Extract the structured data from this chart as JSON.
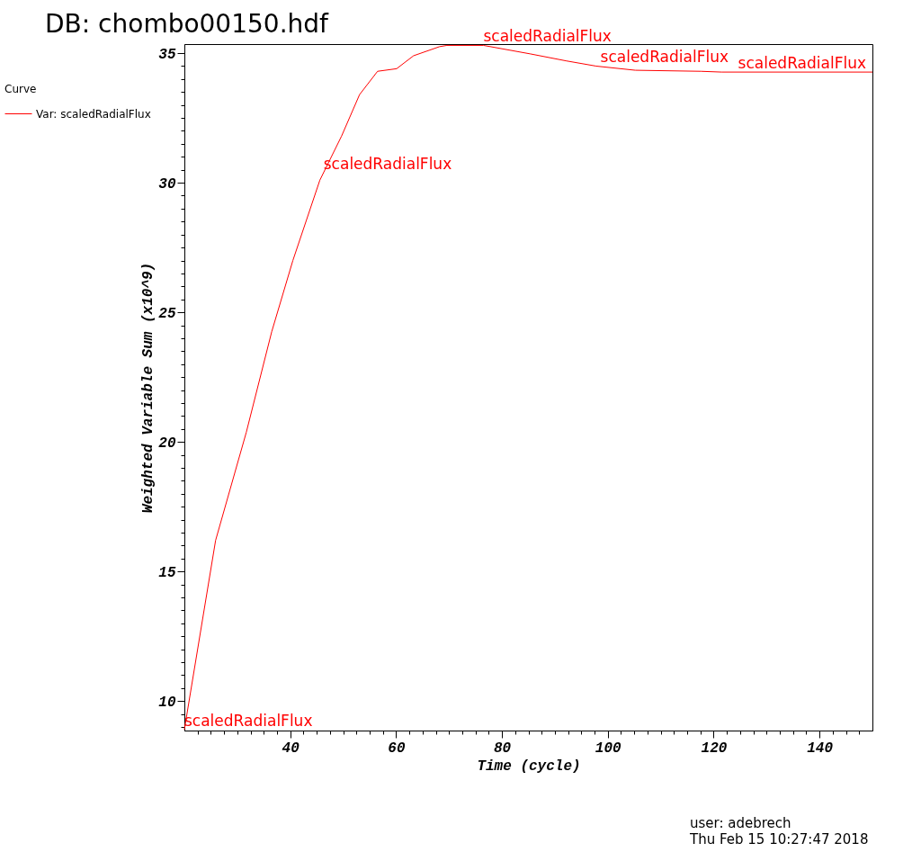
{
  "chart_data": {
    "type": "line",
    "title": "DB: chombo00150.hdf",
    "xlabel": "Time (cycle)",
    "ylabel": "Weighted Variable Sum (x10^9)",
    "legend_title": "Curve",
    "legend": "top left",
    "grid": false,
    "marker": "none",
    "line_style": "solid",
    "xlim": [
      20,
      150
    ],
    "ylim": [
      8.86,
      35.35
    ],
    "xticks": [
      {
        "value": 22.5,
        "label": null
      },
      {
        "value": 25,
        "label": null
      },
      {
        "value": 27.5,
        "label": null
      },
      {
        "value": 30,
        "label": null
      },
      {
        "value": 32.5,
        "label": null
      },
      {
        "value": 35,
        "label": null
      },
      {
        "value": 37.5,
        "label": null
      },
      40,
      {
        "value": 42.5,
        "label": null
      },
      {
        "value": 45,
        "label": null
      },
      {
        "value": 47.5,
        "label": null
      },
      {
        "value": 50,
        "label": null
      },
      {
        "value": 52.5,
        "label": null
      },
      {
        "value": 55,
        "label": null
      },
      {
        "value": 57.5,
        "label": null
      },
      60,
      {
        "value": 62.5,
        "label": null
      },
      {
        "value": 65,
        "label": null
      },
      {
        "value": 67.5,
        "label": null
      },
      {
        "value": 70,
        "label": null
      },
      {
        "value": 72.5,
        "label": null
      },
      {
        "value": 75,
        "label": null
      },
      {
        "value": 77.5,
        "label": null
      },
      80,
      {
        "value": 82.5,
        "label": null
      },
      {
        "value": 85,
        "label": null
      },
      {
        "value": 87.5,
        "label": null
      },
      {
        "value": 90,
        "label": null
      },
      {
        "value": 92.5,
        "label": null
      },
      {
        "value": 95,
        "label": null
      },
      {
        "value": 97.5,
        "label": null
      },
      100,
      {
        "value": 102.5,
        "label": null
      },
      {
        "value": 105,
        "label": null
      },
      {
        "value": 107.5,
        "label": null
      },
      {
        "value": 110,
        "label": null
      },
      {
        "value": 112.5,
        "label": null
      },
      {
        "value": 115,
        "label": null
      },
      {
        "value": 117.5,
        "label": null
      },
      120,
      {
        "value": 122.5,
        "label": null
      },
      {
        "value": 125,
        "label": null
      },
      {
        "value": 127.5,
        "label": null
      },
      {
        "value": 130,
        "label": null
      },
      {
        "value": 132.5,
        "label": null
      },
      {
        "value": 135,
        "label": null
      },
      {
        "value": 137.5,
        "label": null
      },
      140,
      {
        "value": 142.5,
        "label": null
      },
      {
        "value": 145,
        "label": null
      },
      {
        "value": 147.5,
        "label": null
      }
    ],
    "yticks": [
      {
        "value": 9,
        "label": null
      },
      {
        "value": 9.5,
        "label": null
      },
      10,
      {
        "value": 10.5,
        "label": null
      },
      {
        "value": 11,
        "label": null
      },
      {
        "value": 11.5,
        "label": null
      },
      {
        "value": 12,
        "label": null
      },
      {
        "value": 12.5,
        "label": null
      },
      {
        "value": 13,
        "label": null
      },
      {
        "value": 13.5,
        "label": null
      },
      {
        "value": 14,
        "label": null
      },
      {
        "value": 14.5,
        "label": null
      },
      15,
      {
        "value": 15.5,
        "label": null
      },
      {
        "value": 16,
        "label": null
      },
      {
        "value": 16.5,
        "label": null
      },
      {
        "value": 17,
        "label": null
      },
      {
        "value": 17.5,
        "label": null
      },
      {
        "value": 18,
        "label": null
      },
      {
        "value": 18.5,
        "label": null
      },
      {
        "value": 19,
        "label": null
      },
      {
        "value": 19.5,
        "label": null
      },
      20,
      {
        "value": 20.5,
        "label": null
      },
      {
        "value": 21,
        "label": null
      },
      {
        "value": 21.5,
        "label": null
      },
      {
        "value": 22,
        "label": null
      },
      {
        "value": 22.5,
        "label": null
      },
      {
        "value": 23,
        "label": null
      },
      {
        "value": 23.5,
        "label": null
      },
      {
        "value": 24,
        "label": null
      },
      {
        "value": 24.5,
        "label": null
      },
      25,
      {
        "value": 25.5,
        "label": null
      },
      {
        "value": 26,
        "label": null
      },
      {
        "value": 26.5,
        "label": null
      },
      {
        "value": 27,
        "label": null
      },
      {
        "value": 27.5,
        "label": null
      },
      {
        "value": 28,
        "label": null
      },
      {
        "value": 28.5,
        "label": null
      },
      {
        "value": 29,
        "label": null
      },
      {
        "value": 29.5,
        "label": null
      },
      30,
      {
        "value": 30.5,
        "label": null
      },
      {
        "value": 31,
        "label": null
      },
      {
        "value": 31.5,
        "label": null
      },
      {
        "value": 32,
        "label": null
      },
      {
        "value": 32.5,
        "label": null
      },
      {
        "value": 33,
        "label": null
      },
      {
        "value": 33.5,
        "label": null
      },
      {
        "value": 34,
        "label": null
      },
      {
        "value": 34.5,
        "label": null
      },
      35
    ],
    "series": [
      {
        "name": "Var: scaledRadialFlux",
        "color": "#ff0000",
        "x": [
          20,
          25.9,
          31.7,
          36.5,
          40.5,
          45.6,
          49.7,
          53.1,
          56.5,
          60.1,
          63.3,
          68.2,
          69.6,
          76.5,
          85.4,
          92.2,
          97.8,
          105.2,
          117.6,
          121.5,
          150
        ],
        "values": [
          8.9,
          16.2,
          20.37,
          24.25,
          27.0,
          30.1,
          31.8,
          33.4,
          34.3,
          34.4,
          34.9,
          35.25,
          35.3,
          35.3,
          34.97,
          34.7,
          34.5,
          34.34,
          34.3,
          34.27,
          34.27
        ]
      }
    ],
    "annotations": [
      {
        "text": "scaledRadialFlux",
        "x": 20,
        "y": 8.9
      },
      {
        "text": "scaledRadialFlux",
        "x": 46.3,
        "y": 30.4
      },
      {
        "text": "scaledRadialFlux",
        "x": 76.5,
        "y": 35.3
      },
      {
        "text": "scaledRadialFlux",
        "x": 98.6,
        "y": 34.5
      },
      {
        "text": "scaledRadialFlux",
        "x": 124.6,
        "y": 34.27
      },
      "user: adebrech",
      "Thu Feb 15 10:27:47 2018"
    ]
  }
}
